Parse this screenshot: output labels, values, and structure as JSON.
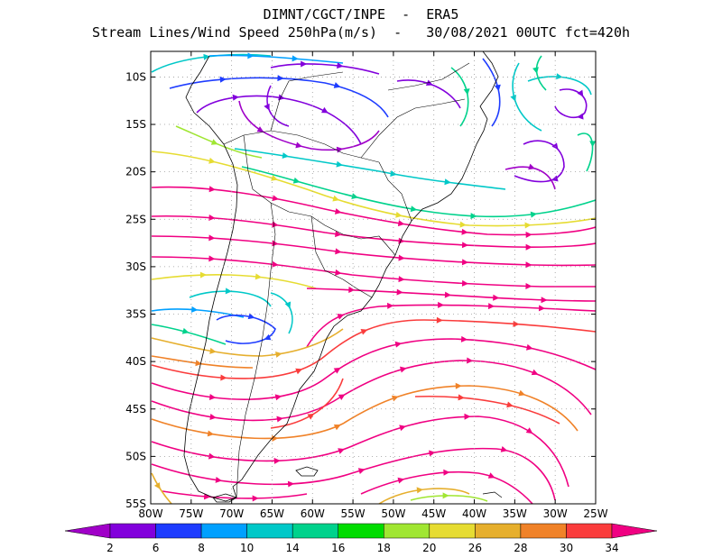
{
  "header": {
    "line1": "DIMNT/CGCT/INPE  -  ERA5",
    "line2": "Stream Lines/Wind Speed 250hPa(m/s)  -   30/08/2021 00UTC fct=420h"
  },
  "map": {
    "lat_labels": [
      "10S",
      "15S",
      "20S",
      "25S",
      "30S",
      "35S",
      "40S",
      "45S",
      "50S",
      "55S"
    ],
    "lon_labels": [
      "80W",
      "75W",
      "70W",
      "65W",
      "60W",
      "55W",
      "50W",
      "45W",
      "40W",
      "35W",
      "30W",
      "25W"
    ]
  },
  "colorbar": {
    "labels": [
      "2",
      "6",
      "8",
      "10",
      "14",
      "16",
      "18",
      "20",
      "26",
      "28",
      "30",
      "34"
    ],
    "colors": [
      "#a000c8",
      "#8200dc",
      "#1e3cff",
      "#00a0ff",
      "#00c8c8",
      "#00d28c",
      "#00dc00",
      "#a0e632",
      "#e6dc32",
      "#e6af2d",
      "#f08228",
      "#fa3c3c",
      "#f00082"
    ]
  },
  "colors": {
    "coast": "#000000",
    "grid": "#999999"
  }
}
